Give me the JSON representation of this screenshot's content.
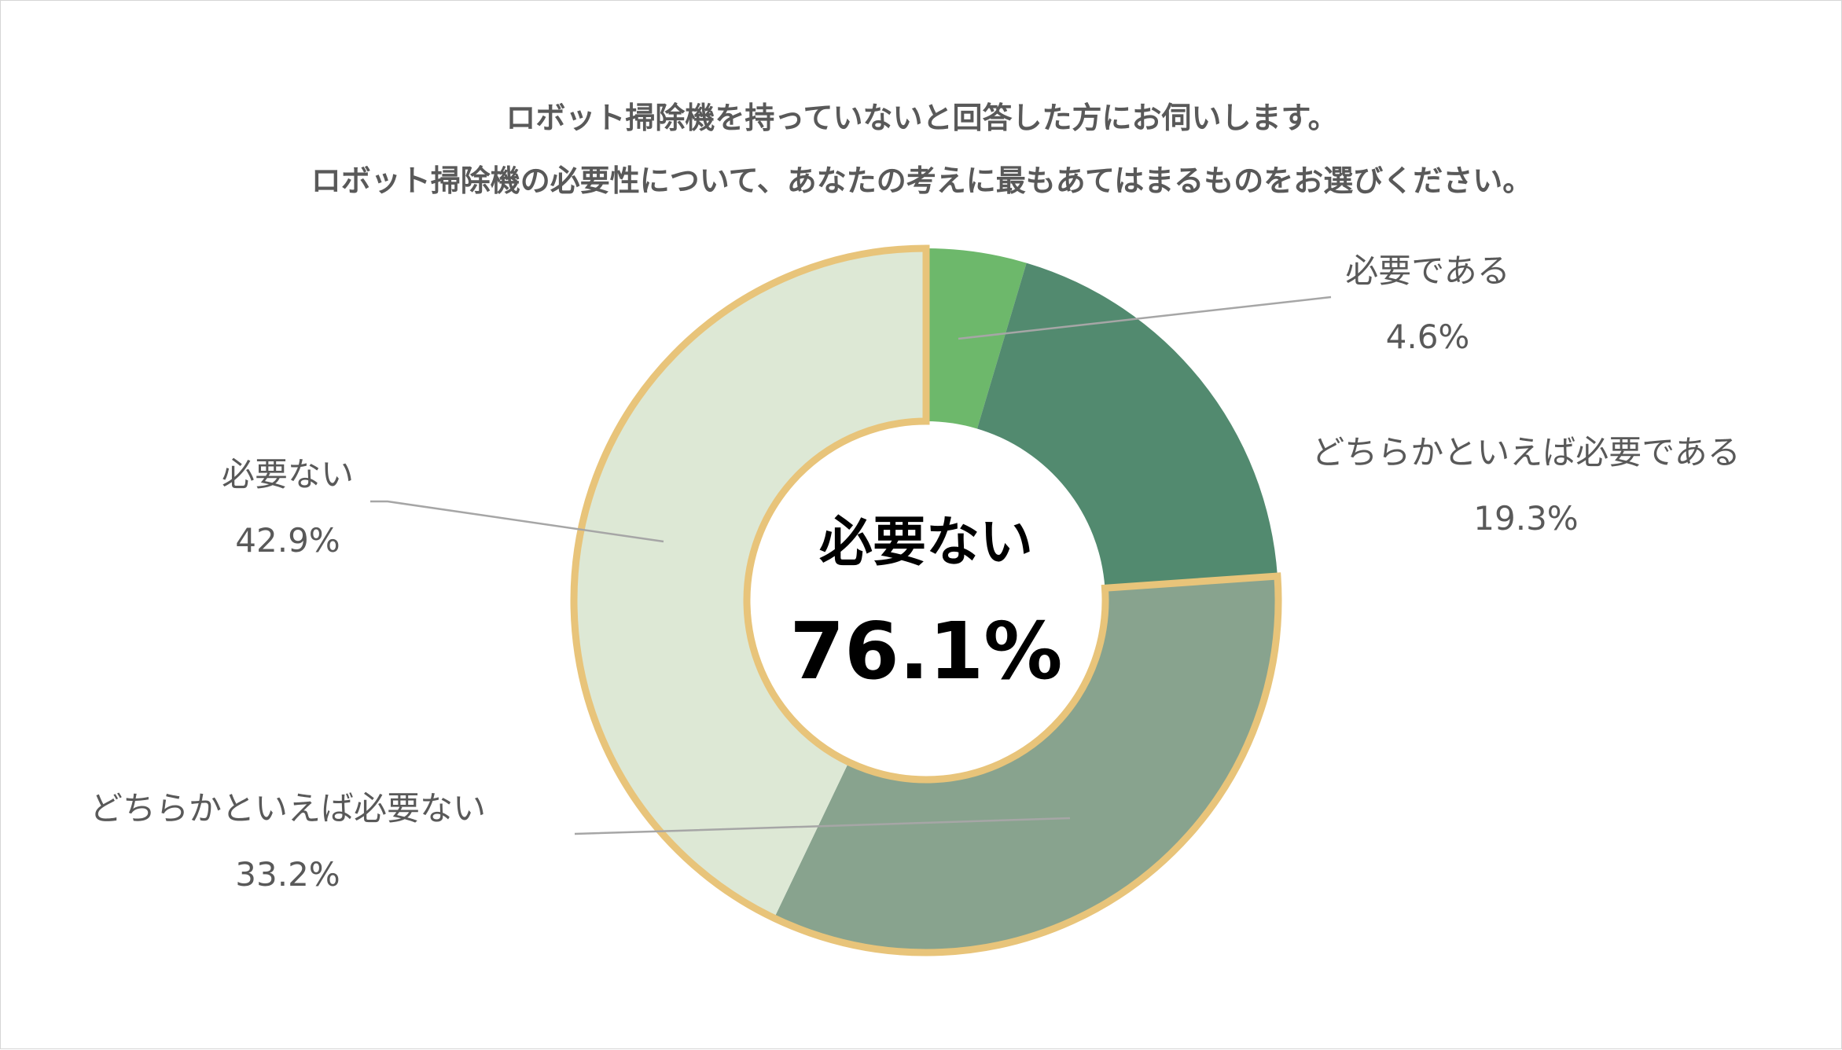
{
  "chart_data": {
    "type": "pie",
    "title_lines": [
      "ロボット掃除機を持っていないと回答した方にお伺いします。",
      "ロボット掃除機の必要性について、あなたの考えに最もあてはまるものをお選びください。"
    ],
    "unit": "%",
    "slices": [
      {
        "label": "必要である",
        "value": 4.6,
        "value_text": "4.6%",
        "color": "#6db86b",
        "highlight": false
      },
      {
        "label": "どちらかといえば必要である",
        "value": 19.3,
        "value_text": "19.3%",
        "color": "#528a6f",
        "highlight": false
      },
      {
        "label": "どちらかといえば必要ない",
        "value": 33.2,
        "value_text": "33.2%",
        "color": "#88a38e",
        "highlight": true
      },
      {
        "label": "必要ない",
        "value": 42.9,
        "value_text": "42.9%",
        "color": "#dde8d5",
        "highlight": true
      }
    ],
    "center_label": "必要ない",
    "center_value": "76.1%",
    "highlight_border_color": "#e8c47a",
    "leader_line_color": "#a6a6a6"
  }
}
